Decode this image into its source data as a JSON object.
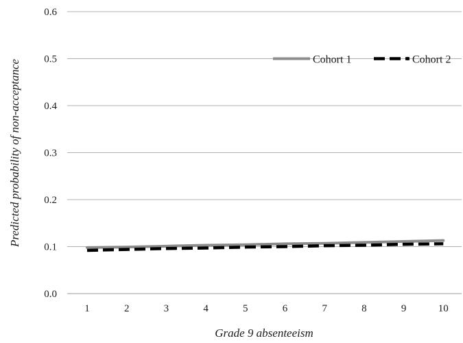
{
  "chart_data": {
    "type": "line",
    "xlabel": "Grade 9 absenteeism",
    "ylabel": "Predicted probability of non-acceptance",
    "x": [
      1,
      2,
      3,
      4,
      5,
      6,
      7,
      8,
      9,
      10
    ],
    "ylim": [
      0.0,
      0.6
    ],
    "yticks": [
      "0.0",
      "0.1",
      "0.2",
      "0.3",
      "0.4",
      "0.5",
      "0.6"
    ],
    "grid": "horizontal",
    "legend": "top-right",
    "series": [
      {
        "name": "Cohort 1",
        "color": "#8c8c8c",
        "style": "solid",
        "values": [
          0.098,
          0.099,
          0.101,
          0.103,
          0.104,
          0.106,
          0.107,
          0.109,
          0.111,
          0.113
        ]
      },
      {
        "name": "Cohort 2",
        "color": "#000000",
        "style": "dashed",
        "values": [
          0.092,
          0.094,
          0.096,
          0.097,
          0.099,
          0.1,
          0.102,
          0.103,
          0.105,
          0.106
        ]
      }
    ]
  }
}
